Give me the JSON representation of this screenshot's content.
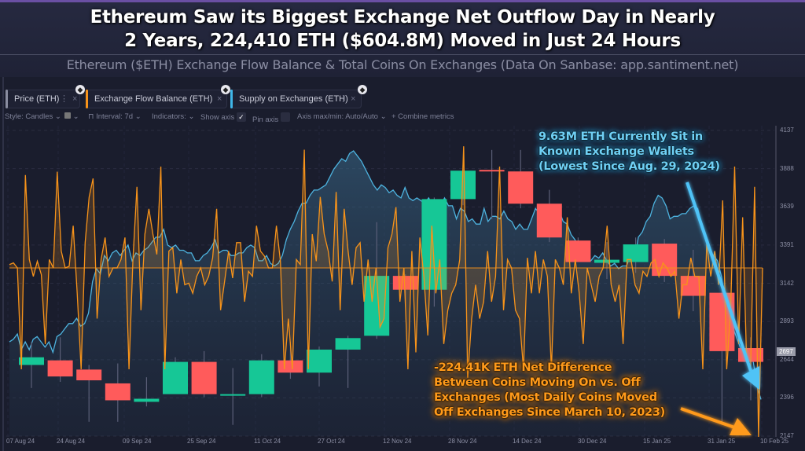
{
  "header": {
    "title_line1": "Ethereum Saw its Biggest Exchange Net Outflow Day in Nearly",
    "title_line2": "2 Years, 224,410 ETH ($604.8M) Moved in Just 24 Hours",
    "subtitle": "Ethereum ($ETH) Exchange Flow Balance & Total Coins On Exchanges (Data On Sanbase: app.santiment.net)"
  },
  "metric_tabs": [
    {
      "label": "Price (ETH)",
      "color": "#8a8da0",
      "icon": "eth-icon"
    },
    {
      "label": "Exchange Flow Balance (ETH)",
      "color": "#f7931a",
      "icon": "eth-icon"
    },
    {
      "label": "Supply on Exchanges (ETH)",
      "color": "#3fb6e8",
      "icon": "eth-icon"
    }
  ],
  "toolbar": {
    "style": "Style: Candles",
    "interval": "Interval: 7d",
    "indicators": "Indicators:",
    "show_axis": "Show axis",
    "show_axis_checked": true,
    "pin_axis": "Pin axis",
    "pin_axis_checked": false,
    "axis_maxmin": "Axis max/min: Auto/Auto",
    "combine": "+ Combine metrics"
  },
  "annotations": {
    "supply": [
      "9.63M ETH Currently Sit in",
      "Known Exchange Wallets",
      "(Lowest Since Aug. 29, 2024)"
    ],
    "flow": [
      "-224.41K ETH Net Difference",
      "Between Coins Moving On vs. Off",
      "Exchanges (Most Daily Coins Moved",
      "Off Exchanges Since March 10, 2023)"
    ]
  },
  "colors": {
    "up": "#16c796",
    "down": "#ff5b5b",
    "flow": "#f7931a",
    "supply": "#4db3df",
    "arrow_blue": "#4fc3f7",
    "arrow_orange": "#ff9a1a"
  },
  "chart_data": {
    "type": "candlestick+line",
    "title": "Ethereum Saw its Biggest Exchange Net Outflow Day in Nearly 2 Years, 224,410 ETH ($604.8M) Moved in Just 24 Hours",
    "interval": "7d",
    "y_axis": {
      "ticks": [
        4137,
        3888,
        3639,
        3391,
        3142,
        2893,
        2644,
        2396,
        2147
      ],
      "range": [
        2147,
        4137
      ],
      "current_price_label": "2697"
    },
    "x_ticks": [
      "07 Aug 24",
      "24 Aug 24",
      "09 Sep 24",
      "25 Sep 24",
      "11 Oct 24",
      "27 Oct 24",
      "12 Nov 24",
      "28 Nov 24",
      "14 Dec 24",
      "30 Dec 24",
      "15 Jan 25",
      "31 Jan 25",
      "10 Feb 25"
    ],
    "candles": [
      {
        "open": 2610,
        "close": 2660,
        "high": 2760,
        "low": 2460
      },
      {
        "open": 2640,
        "close": 2535,
        "high": 2790,
        "low": 2500
      },
      {
        "open": 2580,
        "close": 2510,
        "high": 2610,
        "low": 2240
      },
      {
        "open": 2490,
        "close": 2380,
        "high": 2620,
        "low": 2240
      },
      {
        "open": 2370,
        "close": 2390,
        "high": 2530,
        "low": 2340
      },
      {
        "open": 2420,
        "close": 2630,
        "high": 2660,
        "low": 2430
      },
      {
        "open": 2630,
        "close": 2420,
        "high": 2700,
        "low": 2400
      },
      {
        "open": 2415,
        "close": 2420,
        "high": 2590,
        "low": 2220
      },
      {
        "open": 2420,
        "close": 2640,
        "high": 2680,
        "low": 2400
      },
      {
        "open": 2640,
        "close": 2560,
        "high": 2760,
        "low": 2520
      },
      {
        "open": 2560,
        "close": 2710,
        "high": 2730,
        "low": 2470
      },
      {
        "open": 2710,
        "close": 2785,
        "high": 2800,
        "low": 2460
      },
      {
        "open": 2800,
        "close": 3190,
        "high": 3540,
        "low": 2780
      },
      {
        "open": 3190,
        "close": 3100,
        "high": 3200,
        "low": 2990
      },
      {
        "open": 3100,
        "close": 3690,
        "high": 3700,
        "low": 2990
      },
      {
        "open": 3690,
        "close": 3875,
        "high": 3910,
        "low": 3650
      },
      {
        "open": 3880,
        "close": 3875,
        "high": 4010,
        "low": 3560
      },
      {
        "open": 3870,
        "close": 3660,
        "high": 4010,
        "low": 3630
      },
      {
        "open": 3660,
        "close": 3440,
        "high": 3750,
        "low": 3410
      },
      {
        "open": 3420,
        "close": 3280,
        "high": 3440,
        "low": 3280
      },
      {
        "open": 3275,
        "close": 3295,
        "high": 3410,
        "low": 3170
      },
      {
        "open": 3280,
        "close": 3395,
        "high": 3440,
        "low": 3210
      },
      {
        "open": 3400,
        "close": 3190,
        "high": 3430,
        "low": 3150
      },
      {
        "open": 3190,
        "close": 3060,
        "high": 3360,
        "low": 2960
      },
      {
        "open": 3080,
        "close": 2700,
        "high": 3110,
        "low": 2220
      },
      {
        "open": 2720,
        "close": 2630,
        "high": 2790,
        "low": 2380
      }
    ],
    "series": [
      {
        "name": "Exchange Flow Balance (ETH)",
        "axis": "hidden",
        "values": [
          0.02,
          0.03,
          0.0,
          -0.6,
          0.55,
          0.05,
          -0.05,
          0.04,
          -0.04,
          -0.45,
          0.05,
          0.0,
          0.57,
          0.1,
          0.0,
          0.01,
          0.25,
          -0.15,
          -0.6,
          0.15,
          0.42,
          0.53,
          -0.3,
          0.05,
          0.18,
          -0.05,
          0.0,
          0.0,
          0.05,
          0.18,
          -0.6,
          0.05,
          0.48,
          -0.25,
          0.2,
          0.35,
          0.2,
          0.08,
          0.6,
          -0.6,
          0.1,
          0.12,
          -0.15,
          0.05,
          -0.1,
          -0.09,
          -0.15,
          -0.05,
          0.0,
          -0.1,
          -0.05,
          0.06,
          0.35,
          -0.25,
          -0.08,
          0.1,
          -0.06,
          0.15,
          0.15,
          -0.2,
          -0.02,
          -0.05,
          0.25,
          0.1,
          0.07,
          0.0,
          0.0,
          0.25,
          0.04,
          -0.6,
          -0.3,
          -0.6,
          0.05,
          0.02,
          0.7,
          -0.6,
          0.2,
          0.04,
          0.42,
          0.2,
          0.1,
          -0.08,
          0.45,
          -0.25,
          0.35,
          0.1,
          -0.1,
          0.12,
          0.15,
          -0.2,
          0.05,
          -0.2,
          0.0,
          -0.35,
          -0.3,
          0.12,
          0.2,
          0.36,
          -0.2,
          0.0,
          -0.6,
          0.1,
          -0.5,
          0.18,
          -0.05,
          -0.4,
          0.25,
          -0.15,
          0.05,
          -0.45,
          -0.25,
          -0.15,
          -0.1,
          0.05,
          0.72,
          -0.65,
          -0.3,
          -0.1,
          -0.3,
          -0.2,
          0.1,
          -0.2,
          -0.05,
          0.6,
          -0.25,
          0.05,
          0.0,
          -0.25,
          -0.3,
          -0.6,
          0.06,
          -0.15,
          0.1,
          -0.15,
          0.05,
          -0.05,
          -0.6,
          0.05,
          0.0,
          -0.1,
          0.3,
          -0.15,
          0.05,
          -0.15,
          -0.45,
          0.0,
          -0.1,
          -0.2,
          -0.05,
          0.0,
          0.25,
          -0.1,
          -0.2,
          -0.1,
          -0.45,
          0.05,
          0.05,
          -0.1,
          -0.15,
          -0.02,
          -0.05,
          0.03,
          0.05,
          -0.05,
          0.03,
          0.0,
          -0.05,
          -0.02,
          -0.3,
          -0.1,
          -0.1,
          0.06,
          -0.05,
          -0.05,
          -0.6,
          0.15,
          -0.05,
          0.1,
          -0.1,
          0.4,
          -0.6,
          -0.25,
          0.6,
          -0.45,
          0.3,
          -0.55,
          -0.6,
          0.48,
          -1.0,
          0.0
        ]
      },
      {
        "name": "Supply on Exchanges (ETH)",
        "axis": "hidden",
        "values": [
          0.27,
          0.28,
          0.3,
          0.24,
          0.27,
          0.24,
          0.28,
          0.29,
          0.27,
          0.25,
          0.27,
          0.23,
          0.29,
          0.3,
          0.32,
          0.34,
          0.34,
          0.36,
          0.33,
          0.34,
          0.38,
          0.5,
          0.55,
          0.53,
          0.6,
          0.58,
          0.61,
          0.62,
          0.6,
          0.62,
          0.64,
          0.58,
          0.61,
          0.6,
          0.62,
          0.63,
          0.65,
          0.67,
          0.67,
          0.7,
          0.64,
          0.63,
          0.64,
          0.62,
          0.62,
          0.61,
          0.61,
          0.58,
          0.58,
          0.6,
          0.61,
          0.63,
          0.66,
          0.61,
          0.62,
          0.62,
          0.6,
          0.6,
          0.61,
          0.61,
          0.63,
          0.64,
          0.63,
          0.58,
          0.58,
          0.6,
          0.57,
          0.56,
          0.57,
          0.6,
          0.66,
          0.7,
          0.73,
          0.77,
          0.8,
          0.8,
          0.83,
          0.85,
          0.85,
          0.86,
          0.87,
          0.9,
          0.93,
          0.95,
          0.97,
          0.96,
          0.99,
          1.0,
          0.98,
          0.96,
          0.93,
          0.9,
          0.87,
          0.85,
          0.87,
          0.86,
          0.84,
          0.85,
          0.83,
          0.82,
          0.86,
          0.82,
          0.81,
          0.82,
          0.81,
          0.8,
          0.82,
          0.79,
          0.8,
          0.79,
          0.82,
          0.79,
          0.79,
          0.74,
          0.78,
          0.77,
          0.73,
          0.74,
          0.72,
          0.72,
          0.78,
          0.73,
          0.75,
          0.75,
          0.74,
          0.77,
          0.74,
          0.73,
          0.7,
          0.72,
          0.7,
          0.7,
          0.74,
          0.78,
          0.76,
          0.77,
          0.75,
          0.77,
          0.77,
          0.77,
          0.73,
          0.72,
          0.68,
          0.66,
          0.6,
          0.6,
          0.58,
          0.58,
          0.6,
          0.59,
          0.61,
          0.58,
          0.56,
          0.57,
          0.55,
          0.56,
          0.56,
          0.6,
          0.58,
          0.67,
          0.69,
          0.73,
          0.75,
          0.8,
          0.83,
          0.82,
          0.79,
          0.74,
          0.75,
          0.75,
          0.76,
          0.76,
          0.78,
          0.79,
          0.78,
          0.72,
          0.68,
          0.62,
          0.6,
          0.58,
          0.52,
          0.42,
          0.38,
          0.32,
          0.28,
          0.24,
          0.24,
          0.22,
          0.2,
          0.1,
          0.05
        ]
      }
    ]
  }
}
